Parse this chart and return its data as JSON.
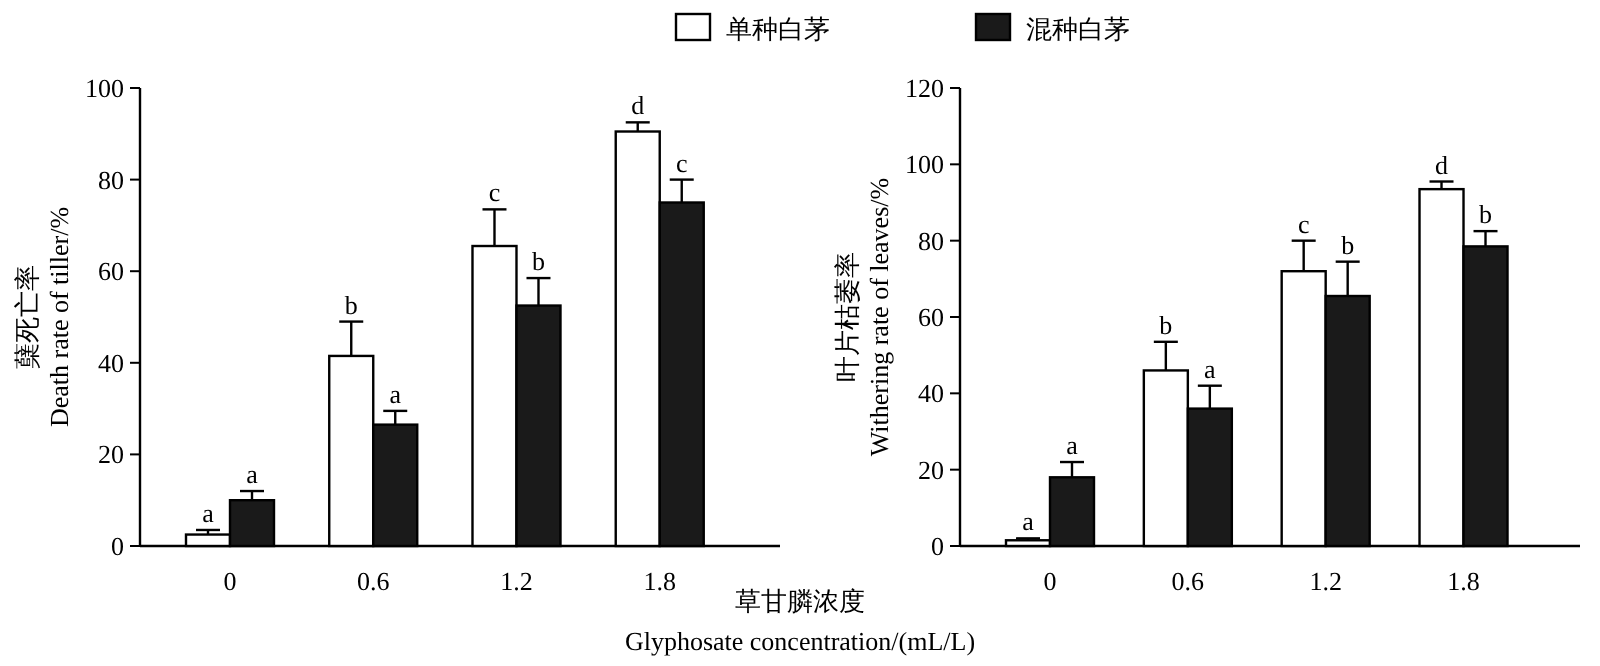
{
  "chart_data": [
    {
      "type": "bar",
      "xlabel": "草甘膦浓度\nGlyphosate concentration/(mL/L)",
      "ylabel": "蘖死亡率\nDeath rate of tiller/%",
      "categories": [
        "0",
        "0.6",
        "1.2",
        "1.8"
      ],
      "ylim": [
        0,
        100
      ],
      "yticks": [
        0,
        20,
        40,
        60,
        80,
        100
      ],
      "legend": "top",
      "series": [
        {
          "name": "单种白茅",
          "color": "#ffffff",
          "values": [
            2.5,
            41.5,
            65.5,
            90.5
          ],
          "errors": [
            1,
            7.5,
            8,
            2
          ],
          "value_labels": [
            "a",
            "b",
            "c",
            "d"
          ]
        },
        {
          "name": "混种白茅",
          "color": "#1a1a1a",
          "values": [
            10,
            26.5,
            52.5,
            75
          ],
          "errors": [
            2,
            3,
            6,
            5
          ],
          "value_labels": [
            "a",
            "a",
            "b",
            "c"
          ]
        }
      ]
    },
    {
      "type": "bar",
      "ylabel": "叶片枯萎率\nWithering rate of leaves/%",
      "categories": [
        "0",
        "0.6",
        "1.2",
        "1.8"
      ],
      "ylim": [
        0,
        120
      ],
      "yticks": [
        0,
        20,
        40,
        60,
        80,
        100,
        120
      ],
      "series": [
        {
          "color": "#ffffff",
          "values": [
            1.5,
            46,
            72,
            93.5
          ],
          "errors": [
            0.5,
            7.5,
            8,
            2
          ],
          "value_labels": [
            "a",
            "b",
            "c",
            "d"
          ]
        },
        {
          "color": "#1a1a1a",
          "values": [
            18,
            36,
            65.5,
            78.5
          ],
          "errors": [
            4,
            6,
            9,
            4
          ],
          "value_labels": [
            "a",
            "a",
            "b",
            "b"
          ]
        }
      ]
    }
  ]
}
